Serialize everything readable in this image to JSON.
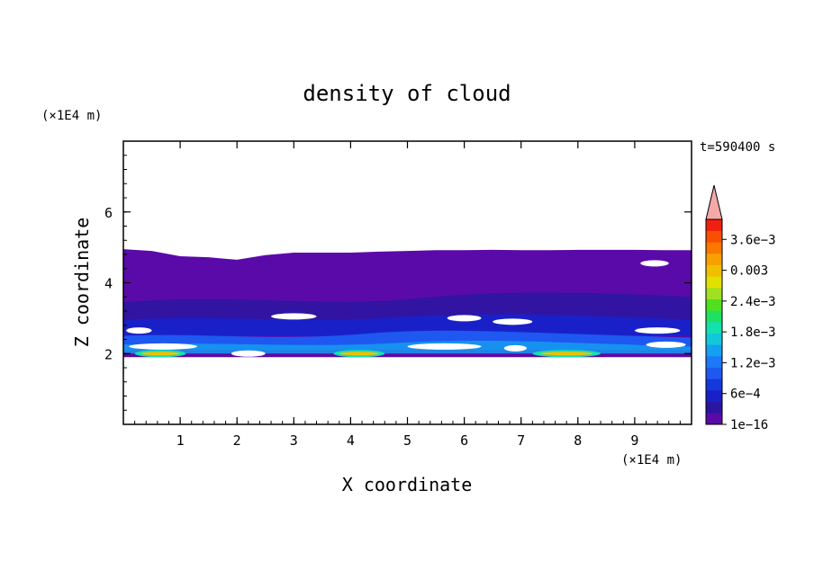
{
  "chart_data": {
    "type": "heatmap",
    "title": "density of cloud",
    "time_label": "t=590400 s",
    "xlabel": "X coordinate",
    "ylabel": "Z coordinate",
    "x_unit": "(×1E4 m)",
    "z_unit": "(×1E4 m)",
    "xlim": [
      0,
      10
    ],
    "ylim": [
      0,
      8
    ],
    "x_ticks": [
      1,
      2,
      3,
      4,
      5,
      6,
      7,
      8,
      9
    ],
    "x_tick_labels": [
      "1",
      "2",
      "3",
      "4",
      "5",
      "6",
      "7",
      "8",
      "9"
    ],
    "y_ticks": [
      2,
      4,
      6
    ],
    "y_tick_labels": [
      "2",
      "4",
      "6"
    ],
    "cloud_top_profile": [
      [
        0,
        4.95
      ],
      [
        0.5,
        4.9
      ],
      [
        1.0,
        4.75
      ],
      [
        1.5,
        4.72
      ],
      [
        2.0,
        4.65
      ],
      [
        2.5,
        4.78
      ],
      [
        3.0,
        4.85
      ],
      [
        3.5,
        4.85
      ],
      [
        4.0,
        4.85
      ],
      [
        4.5,
        4.88
      ],
      [
        5.0,
        4.9
      ],
      [
        5.5,
        4.92
      ],
      [
        6.0,
        4.92
      ],
      [
        6.5,
        4.93
      ],
      [
        7.0,
        4.92
      ],
      [
        7.5,
        4.92
      ],
      [
        8.0,
        4.93
      ],
      [
        8.5,
        4.93
      ],
      [
        9.0,
        4.93
      ],
      [
        9.5,
        4.92
      ],
      [
        10.0,
        4.92
      ]
    ],
    "cloud_base_z": 1.9,
    "colorbar": {
      "tick_labels": [
        "1e−16",
        "6e−4",
        "1.2e−3",
        "1.8e−3",
        "2.4e−3",
        "0.003",
        "3.6e−3"
      ],
      "extend": "max",
      "levels_colors": [
        "#5a0aa8",
        "#2a16a0",
        "#1a20c8",
        "#1438dc",
        "#1e58f0",
        "#1e78f8",
        "#14a0f0",
        "#10c8d8",
        "#14e0b0",
        "#20e060",
        "#50e020",
        "#a0e020",
        "#e0e000",
        "#f0c000",
        "#f8a000",
        "#f87800",
        "#f85000",
        "#f02010"
      ],
      "over_color": "#f4a8a8"
    }
  }
}
